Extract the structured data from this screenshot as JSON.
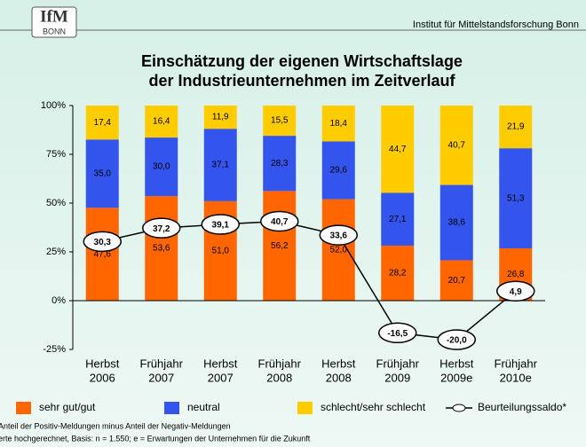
{
  "header": {
    "logo_top": "IfM",
    "logo_bottom": "BONN",
    "institute": "Institut für Mittelstandsforschung Bonn"
  },
  "chart_data": {
    "type": "bar",
    "stacked": true,
    "title": [
      "Einschätzung der eigenen Wirtschaftslage",
      "der Industrieunternehmen  im Zeitverlauf"
    ],
    "categories": [
      [
        "Herbst",
        "2006"
      ],
      [
        "Frühjahr",
        "2007"
      ],
      [
        "Herbst",
        "2007"
      ],
      [
        "Frühjahr",
        "2008"
      ],
      [
        "Herbst",
        "2008"
      ],
      [
        "Frühjahr",
        "2009"
      ],
      [
        "Herbst",
        "2009e"
      ],
      [
        "Frühjahr",
        "2010e"
      ]
    ],
    "series": [
      {
        "name": "sehr gut/gut",
        "color": "#ff6600",
        "values": [
          47.6,
          53.6,
          51.0,
          56.2,
          52.0,
          28.2,
          20.7,
          26.8
        ],
        "value_labels": [
          "47,6",
          "53,6",
          "51,0",
          "56,2",
          "52,0",
          "28,2",
          "20,7",
          "26,8"
        ]
      },
      {
        "name": "neutral",
        "color": "#3355ee",
        "values": [
          35.0,
          30.0,
          37.1,
          28.3,
          29.6,
          27.1,
          38.6,
          51.3
        ],
        "value_labels": [
          "35,0",
          "30,0",
          "37,1",
          "28,3",
          "29,6",
          "27,1",
          "38,6",
          "51,3"
        ]
      },
      {
        "name": "schlecht/sehr schlecht",
        "color": "#ffcc00",
        "values": [
          17.4,
          16.4,
          11.9,
          15.5,
          18.4,
          44.7,
          40.7,
          21.9
        ],
        "value_labels": [
          "17,4",
          "16,4",
          "11,9",
          "15,5",
          "18,4",
          "44,7",
          "40,7",
          "21,9"
        ]
      },
      {
        "name": "Beurteilungssaldo*",
        "type": "line",
        "color": "#000000",
        "values": [
          30.3,
          37.2,
          39.1,
          40.7,
          33.6,
          -16.5,
          -20.0,
          4.9
        ],
        "value_labels": [
          "30,3",
          "37,2",
          "39,1",
          "40,7",
          "33,6",
          "-16,5",
          "-20,0",
          "4,9"
        ]
      }
    ],
    "ylim": [
      -25,
      100
    ],
    "yticks": [
      {
        "value": -25,
        "label": "-25%"
      },
      {
        "value": 0,
        "label": "0%"
      },
      {
        "value": 25,
        "label": "25%"
      },
      {
        "value": 50,
        "label": "50%"
      },
      {
        "value": 75,
        "label": "75%"
      },
      {
        "value": 100,
        "label": "100%"
      }
    ],
    "footnotes": [
      "Anteil der Positiv-Meldungen minus Anteil der Negativ-Meldungen",
      "erte hochgerechnet, Basis: n = 1.550; e = Erwartungen der Unternehmen für die Zukunft"
    ]
  }
}
